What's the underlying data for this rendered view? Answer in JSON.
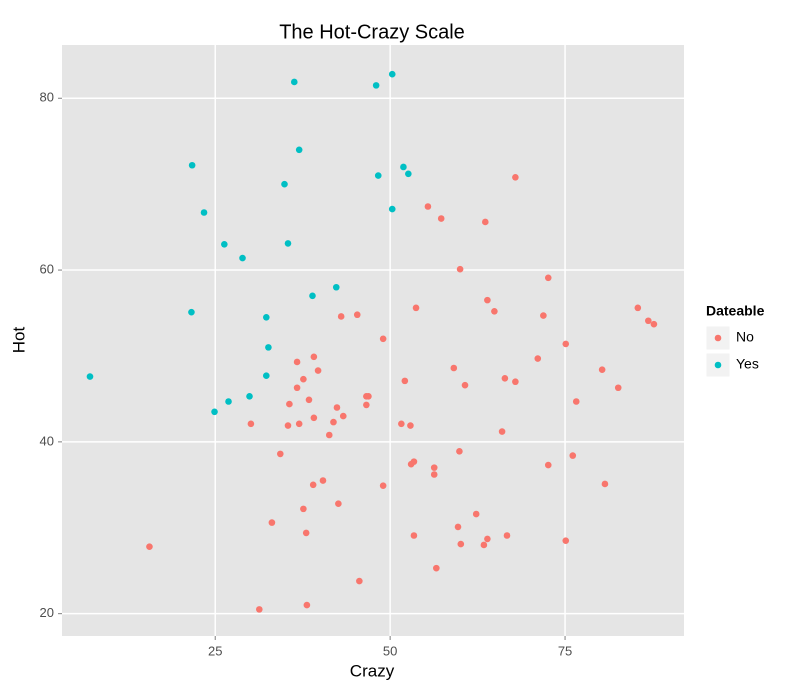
{
  "chart_data": {
    "type": "scatter",
    "title": "The Hot-Crazy Scale",
    "x_label": "Crazy",
    "y_label": "Hot",
    "xlim": [
      3.1,
      92.0
    ],
    "ylim": [
      17.4,
      86.2
    ],
    "xticks": [
      25,
      50,
      75
    ],
    "yticks": [
      20,
      40,
      60,
      80
    ],
    "grid": true,
    "legend": {
      "title": "Dateable",
      "position": "right"
    },
    "series": [
      {
        "name": "No",
        "color": "#F8766D",
        "x": [
          15.6,
          30.1,
          31.3,
          33.1,
          34.3,
          35.4,
          35.6,
          36.7,
          36.7,
          37.0,
          37.6,
          37.6,
          38.0,
          38.1,
          38.4,
          39.0,
          39.1,
          39.1,
          39.7,
          40.4,
          41.3,
          41.9,
          42.4,
          42.6,
          43.0,
          43.3,
          45.3,
          45.6,
          46.6,
          46.9,
          46.6,
          49.0,
          49.0,
          51.6,
          52.1,
          52.9,
          53.0,
          53.4,
          53.4,
          53.7,
          55.4,
          57.3,
          56.3,
          56.3,
          56.6,
          59.1,
          59.7,
          59.9,
          60.1,
          60.0,
          60.7,
          62.3,
          63.4,
          63.6,
          63.9,
          63.9,
          64.9,
          66.0,
          66.4,
          66.7,
          67.9,
          67.9,
          71.1,
          71.9,
          72.6,
          72.6,
          75.1,
          75.1,
          76.1,
          76.6,
          80.3,
          80.7,
          82.6,
          85.4,
          86.9,
          87.7
        ],
        "values": [
          27.8,
          42.1,
          20.5,
          30.6,
          38.6,
          41.9,
          44.4,
          46.3,
          49.3,
          42.1,
          47.3,
          32.2,
          29.4,
          21.0,
          44.9,
          35.0,
          49.9,
          42.8,
          48.3,
          35.5,
          40.8,
          42.3,
          44.0,
          32.8,
          54.6,
          43.0,
          54.8,
          23.8,
          45.3,
          45.3,
          44.3,
          52.0,
          34.9,
          42.1,
          47.1,
          41.9,
          37.4,
          37.7,
          29.1,
          55.6,
          67.4,
          66.0,
          37.0,
          36.2,
          25.3,
          48.6,
          30.1,
          38.9,
          28.1,
          60.1,
          46.6,
          31.6,
          28.0,
          65.6,
          56.5,
          28.7,
          55.2,
          41.2,
          47.4,
          29.1,
          47.0,
          70.8,
          49.7,
          54.7,
          59.1,
          37.3,
          51.4,
          28.5,
          38.4,
          44.7,
          48.4,
          35.1,
          46.3,
          55.6,
          54.1,
          53.7
        ]
      },
      {
        "name": "Yes",
        "color": "#00BFC4",
        "x": [
          7.1,
          21.7,
          23.4,
          21.6,
          26.3,
          28.9,
          24.9,
          26.9,
          29.9,
          32.3,
          32.6,
          32.3,
          34.9,
          35.4,
          36.3,
          37.0,
          38.9,
          42.3,
          48.0,
          50.3,
          48.3,
          50.3,
          51.9,
          52.6
        ],
        "values": [
          47.6,
          72.2,
          66.7,
          55.1,
          63.0,
          61.4,
          43.5,
          44.7,
          45.3,
          54.5,
          51.0,
          47.7,
          70.0,
          63.1,
          81.9,
          74.0,
          57.0,
          58.0,
          81.5,
          82.8,
          71.0,
          67.1,
          72.0,
          71.2
        ]
      }
    ]
  }
}
